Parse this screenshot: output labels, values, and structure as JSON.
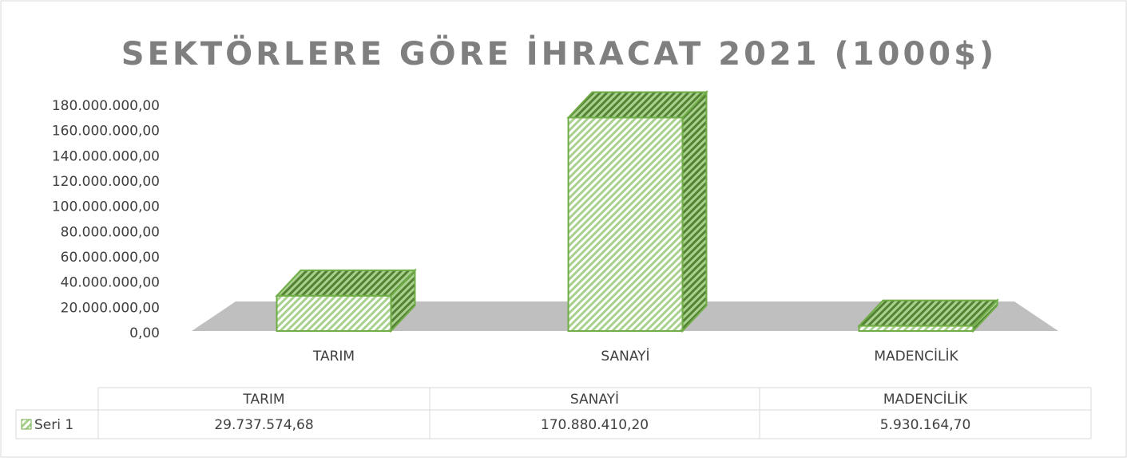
{
  "chart_data": {
    "type": "bar3d",
    "title": "SEKTÖRLERE GÖRE İHRACAT 2021 (1000$)",
    "categories": [
      "TARIM",
      "SANAYİ",
      "MADENCİLİK"
    ],
    "series": [
      {
        "name": "Seri 1",
        "color": "#70ad47",
        "values": [
          29737574.68,
          170880410.2,
          5930164.7
        ],
        "value_labels": [
          "29.737.574,68",
          "170.880.410,20",
          "5.930.164,70"
        ]
      }
    ],
    "ylim": [
      0,
      180000000
    ],
    "yticks": [
      {
        "value": 0,
        "label": "0,00"
      },
      {
        "value": 20000000,
        "label": "20.000.000,00"
      },
      {
        "value": 40000000,
        "label": "40.000.000,00"
      },
      {
        "value": 60000000,
        "label": "60.000.000,00"
      },
      {
        "value": 80000000,
        "label": "80.000.000,00"
      },
      {
        "value": 100000000,
        "label": "100.000.000,00"
      },
      {
        "value": 120000000,
        "label": "120.000.000,00"
      },
      {
        "value": 140000000,
        "label": "140.000.000,00"
      },
      {
        "value": 160000000,
        "label": "160.000.000,00"
      },
      {
        "value": 180000000,
        "label": "180.000.000,00"
      }
    ],
    "grid": false,
    "data_table": true
  }
}
